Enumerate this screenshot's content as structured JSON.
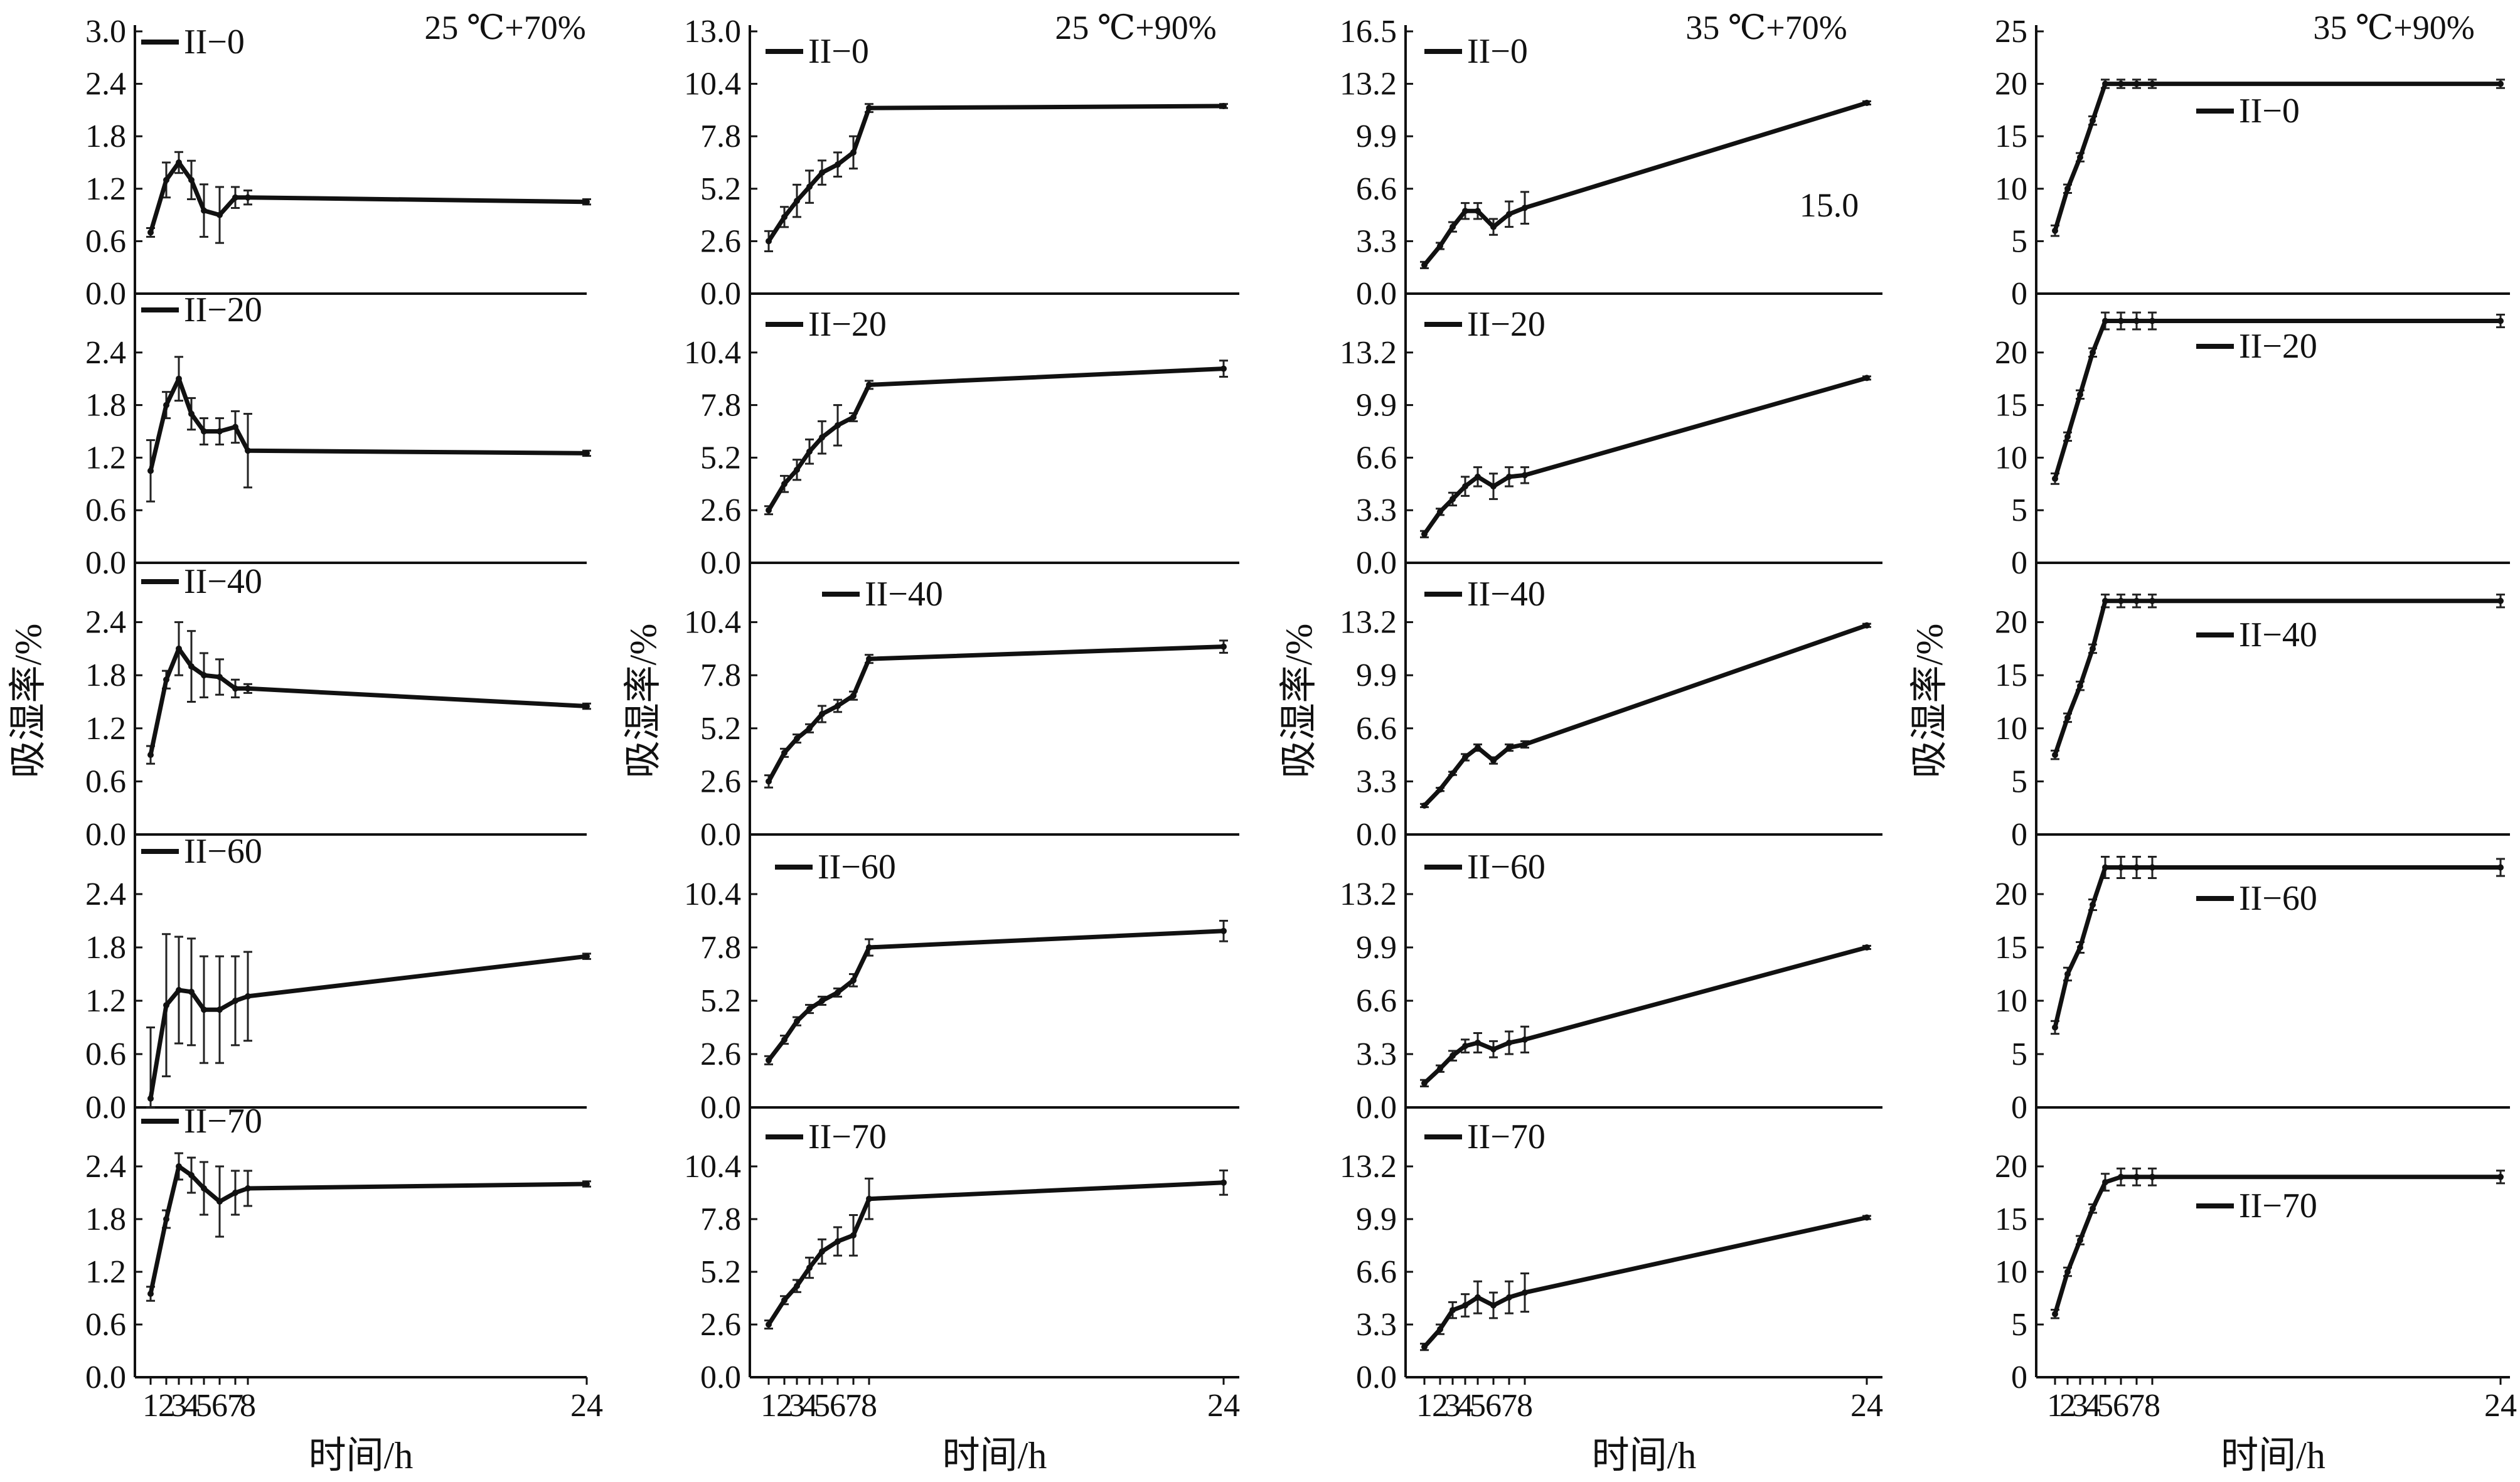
{
  "figure": {
    "x_axis_label": "时间/h",
    "y_axis_label": "吸湿率/%",
    "x_ticks": [
      "1",
      "2",
      "3",
      "4",
      "5",
      "6",
      "7",
      "8",
      "24"
    ]
  },
  "chart_data": [
    {
      "type": "line",
      "condition": "25 ℃+70%",
      "xlabel": "时间/h",
      "ylabel": "吸湿率/%",
      "ylim": [
        0,
        3.0
      ],
      "yticks": [
        "0.0",
        "0.6",
        "1.2",
        "1.8",
        "2.4",
        "3.0"
      ],
      "x": [
        1,
        2,
        3,
        4,
        5,
        6,
        7,
        8,
        24
      ],
      "series": [
        {
          "name": "II−0",
          "values": [
            0.7,
            1.3,
            1.5,
            1.3,
            0.95,
            0.9,
            1.1,
            1.1,
            1.05
          ],
          "errors": [
            0.05,
            0.2,
            0.12,
            0.22,
            0.3,
            0.32,
            0.12,
            0.08,
            0.03
          ]
        },
        {
          "name": "II−20",
          "values": [
            1.05,
            1.8,
            2.1,
            1.7,
            1.5,
            1.5,
            1.55,
            1.28,
            1.25
          ],
          "errors": [
            0.35,
            0.15,
            0.25,
            0.18,
            0.15,
            0.15,
            0.18,
            0.42,
            0.03
          ]
        },
        {
          "name": "II−40",
          "values": [
            0.9,
            1.75,
            2.1,
            1.9,
            1.8,
            1.78,
            1.65,
            1.65,
            1.45
          ],
          "errors": [
            0.1,
            0.1,
            0.3,
            0.4,
            0.25,
            0.2,
            0.1,
            0.05,
            0.03
          ]
        },
        {
          "name": "II−60",
          "values": [
            0.1,
            1.15,
            1.32,
            1.3,
            1.1,
            1.1,
            1.2,
            1.25,
            1.7
          ],
          "errors": [
            0.8,
            0.8,
            0.6,
            0.6,
            0.6,
            0.6,
            0.5,
            0.5,
            0.03
          ]
        },
        {
          "name": "II−70",
          "values": [
            0.95,
            1.8,
            2.4,
            2.3,
            2.15,
            2.0,
            2.1,
            2.15,
            2.2
          ],
          "errors": [
            0.08,
            0.1,
            0.15,
            0.2,
            0.3,
            0.4,
            0.25,
            0.2,
            0.03
          ]
        }
      ]
    },
    {
      "type": "line",
      "condition": "25 ℃+90%",
      "xlabel": "时间/h",
      "ylabel": "吸湿率/%",
      "ylim": [
        0,
        13.0
      ],
      "yticks": [
        "0.0",
        "2.6",
        "5.2",
        "7.8",
        "10.4",
        "13.0"
      ],
      "x": [
        1,
        2,
        3,
        4,
        5,
        6,
        7,
        8,
        24
      ],
      "series": [
        {
          "name": "II−0",
          "values": [
            2.6,
            3.8,
            4.6,
            5.3,
            6.0,
            6.4,
            7.0,
            9.2,
            9.3
          ],
          "errors": [
            0.5,
            0.5,
            0.8,
            0.8,
            0.6,
            0.6,
            0.8,
            0.2,
            0.1
          ]
        },
        {
          "name": "II−20",
          "values": [
            2.6,
            3.9,
            4.6,
            5.5,
            6.2,
            6.8,
            7.2,
            8.8,
            9.6
          ],
          "errors": [
            0.2,
            0.4,
            0.5,
            0.6,
            0.8,
            1.0,
            0.2,
            0.2,
            0.4
          ]
        },
        {
          "name": "II−40",
          "values": [
            2.6,
            4.0,
            4.7,
            5.2,
            5.9,
            6.3,
            6.8,
            8.6,
            9.2
          ],
          "errors": [
            0.3,
            0.2,
            0.2,
            0.2,
            0.4,
            0.3,
            0.2,
            0.2,
            0.3
          ]
        },
        {
          "name": "II−60",
          "values": [
            2.3,
            3.3,
            4.2,
            4.8,
            5.2,
            5.6,
            6.2,
            7.8,
            8.6
          ],
          "errors": [
            0.2,
            0.2,
            0.2,
            0.2,
            0.2,
            0.2,
            0.3,
            0.4,
            0.5
          ]
        },
        {
          "name": "II−70",
          "values": [
            2.6,
            3.8,
            4.5,
            5.4,
            6.2,
            6.7,
            7.0,
            8.8,
            9.6
          ],
          "errors": [
            0.2,
            0.2,
            0.3,
            0.5,
            0.6,
            0.7,
            1.0,
            1.0,
            0.6
          ]
        }
      ]
    },
    {
      "type": "line",
      "condition": "35 ℃+70%",
      "annotation": "15.0",
      "xlabel": "时间/h",
      "ylabel": "吸湿率/%",
      "ylim": [
        0,
        16.5
      ],
      "yticks": [
        "0.0",
        "3.3",
        "6.6",
        "9.9",
        "13.2",
        "16.5"
      ],
      "x": [
        1,
        2,
        3,
        4,
        5,
        6,
        7,
        8,
        24
      ],
      "series": [
        {
          "name": "II−0",
          "values": [
            1.8,
            3.0,
            4.2,
            5.2,
            5.2,
            4.2,
            5.0,
            5.4,
            12.0
          ],
          "errors": [
            0.2,
            0.2,
            0.3,
            0.5,
            0.5,
            0.5,
            0.8,
            1.0,
            0.1
          ]
        },
        {
          "name": "II−20",
          "values": [
            1.8,
            3.2,
            4.0,
            4.8,
            5.4,
            4.8,
            5.4,
            5.5,
            11.6
          ],
          "errors": [
            0.2,
            0.2,
            0.4,
            0.6,
            0.6,
            0.8,
            0.6,
            0.5,
            0.1
          ]
        },
        {
          "name": "II−40",
          "values": [
            1.8,
            2.8,
            3.8,
            4.8,
            5.4,
            4.6,
            5.4,
            5.6,
            13.0
          ],
          "errors": [
            0.1,
            0.1,
            0.1,
            0.2,
            0.2,
            0.2,
            0.2,
            0.2,
            0.1
          ]
        },
        {
          "name": "II−60",
          "values": [
            1.5,
            2.4,
            3.2,
            3.8,
            4.0,
            3.6,
            4.0,
            4.2,
            9.9
          ],
          "errors": [
            0.2,
            0.2,
            0.3,
            0.4,
            0.6,
            0.5,
            0.7,
            0.8,
            0.1
          ]
        },
        {
          "name": "II−70",
          "values": [
            1.9,
            3.0,
            4.2,
            4.5,
            5.0,
            4.5,
            5.0,
            5.3,
            10.0
          ],
          "errors": [
            0.2,
            0.3,
            0.5,
            0.7,
            1.0,
            0.8,
            1.0,
            1.2,
            0.1
          ]
        }
      ]
    },
    {
      "type": "line",
      "condition": "35 ℃+90%",
      "xlabel": "时间/h",
      "ylabel": "吸湿率/%",
      "ylims": [
        [
          0,
          25
        ],
        [
          0,
          25
        ],
        [
          0,
          25
        ],
        [
          0,
          25
        ],
        [
          0,
          25
        ]
      ],
      "ylim": [
        0,
        25
      ],
      "panel_yticks": [
        [
          "0",
          "5",
          "10",
          "15",
          "20",
          "25"
        ],
        [
          "0",
          "5",
          "10",
          "15",
          "20"
        ],
        [
          "0",
          "5",
          "10",
          "15",
          "20"
        ],
        [
          "0",
          "5",
          "10",
          "15",
          "20"
        ],
        [
          "0",
          "5",
          "10",
          "15",
          "20"
        ]
      ],
      "x": [
        1,
        2,
        3,
        4,
        5,
        6,
        7,
        8,
        24
      ],
      "series": [
        {
          "name": "II−0",
          "values": [
            6.0,
            10.0,
            13.0,
            16.5,
            20.0,
            20.0,
            20.0,
            20.0,
            20.0
          ],
          "errors": [
            0.5,
            0.4,
            0.4,
            0.4,
            0.4,
            0.4,
            0.4,
            0.4,
            0.4
          ]
        },
        {
          "name": "II−20",
          "values": [
            8.0,
            12.0,
            16.0,
            20.0,
            23.0,
            23.0,
            23.0,
            23.0,
            23.0
          ],
          "errors": [
            0.5,
            0.4,
            0.4,
            0.4,
            0.8,
            0.8,
            0.8,
            0.8,
            0.6
          ]
        },
        {
          "name": "II−40",
          "values": [
            7.5,
            11.0,
            14.0,
            17.5,
            22.0,
            22.0,
            22.0,
            22.0,
            22.0
          ],
          "errors": [
            0.4,
            0.4,
            0.4,
            0.4,
            0.6,
            0.6,
            0.6,
            0.6,
            0.6
          ]
        },
        {
          "name": "II−60",
          "values": [
            7.5,
            12.5,
            15.0,
            19.0,
            22.5,
            22.5,
            22.5,
            22.5,
            22.5
          ],
          "errors": [
            0.6,
            0.6,
            0.5,
            0.5,
            1.0,
            1.0,
            1.0,
            1.0,
            0.8
          ]
        },
        {
          "name": "II−70",
          "values": [
            6.0,
            10.0,
            13.0,
            16.0,
            18.5,
            19.0,
            19.0,
            19.0,
            19.0
          ],
          "errors": [
            0.4,
            0.4,
            0.4,
            0.4,
            0.8,
            0.8,
            0.8,
            0.8,
            0.6
          ]
        }
      ]
    }
  ]
}
